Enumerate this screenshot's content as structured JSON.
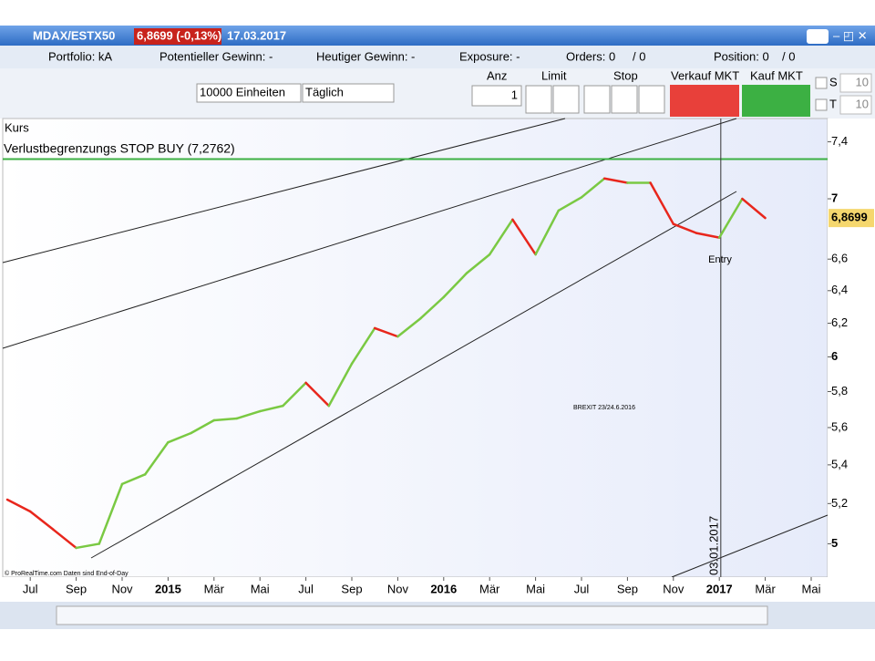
{
  "title_bar": {
    "symbol": "MDAX/ESTX50",
    "price": "6,8699 (-0,13%)",
    "date": "17.03.2017"
  },
  "info_bar": {
    "portfolio": "Portfolio: kA",
    "potential": "Potentieller Gewinn: -",
    "today": "Heutiger Gewinn: -",
    "exposure": "Exposure: -",
    "orders": "Orders: 0",
    "orders_total": "/ 0",
    "position": "Position: 0",
    "position_total": "/ 0"
  },
  "toolbar": {
    "units": "10000 Einheiten",
    "period": "Täglich",
    "qty_label": "Anz",
    "qty": "1",
    "limit": "Limit",
    "stop": "Stop",
    "sell": "Verkauf MKT",
    "buy": "Kauf MKT",
    "s_label": "S",
    "s_value": "10",
    "t_label": "T",
    "t_value": "10"
  },
  "chart_data": {
    "type": "line",
    "panel_label": "Kurs",
    "stop_text": "Verlustbegrenzungs STOP BUY (7,2762)",
    "stop_level": 7.2762,
    "stop_color": "#3cb043",
    "last_price": {
      "value": 6.8699,
      "label": "6,8699"
    },
    "marker_date": "03.01.2017",
    "annotations": [
      "Entry",
      "BREXIT 23/24.6.2016"
    ],
    "copyright": "© ProRealTime.com  Daten sind End-of-Day",
    "up_color": "#7ac943",
    "down_color": "#e8261c",
    "log_scale": true,
    "x": [
      "2014-06",
      "2014-07",
      "2014-08",
      "2014-09",
      "2014-10",
      "2014-11",
      "2014-12",
      "2015-01",
      "2015-02",
      "2015-03",
      "2015-04",
      "2015-05",
      "2015-06",
      "2015-07",
      "2015-08",
      "2015-09",
      "2015-10",
      "2015-11",
      "2015-12",
      "2016-01",
      "2016-02",
      "2016-03",
      "2016-04",
      "2016-05",
      "2016-06",
      "2016-07",
      "2016-08",
      "2016-09",
      "2016-10",
      "2016-11",
      "2016-12",
      "2017-01",
      "2017-02",
      "2017-03"
    ],
    "values": [
      5.22,
      5.16,
      5.07,
      4.98,
      5.0,
      5.3,
      5.35,
      5.52,
      5.57,
      5.64,
      5.65,
      5.69,
      5.72,
      5.85,
      5.72,
      5.96,
      6.17,
      6.12,
      6.23,
      6.36,
      6.51,
      6.63,
      6.86,
      6.63,
      6.92,
      7.01,
      7.14,
      7.11,
      7.11,
      6.83,
      6.77,
      6.74,
      7.0,
      6.87
    ],
    "xlim": [
      "2014-06",
      "2017-05"
    ],
    "xticks": [
      {
        "value": "2014-07",
        "label": "Jul"
      },
      {
        "value": "2014-09",
        "label": "Sep"
      },
      {
        "value": "2014-11",
        "label": "Nov"
      },
      {
        "value": "2015-01",
        "label": "2015"
      },
      {
        "value": "2015-03",
        "label": "Mär"
      },
      {
        "value": "2015-05",
        "label": "Mai"
      },
      {
        "value": "2015-07",
        "label": "Jul"
      },
      {
        "value": "2015-09",
        "label": "Sep"
      },
      {
        "value": "2015-11",
        "label": "Nov"
      },
      {
        "value": "2016-01",
        "label": "2016"
      },
      {
        "value": "2016-03",
        "label": "Mär"
      },
      {
        "value": "2016-05",
        "label": "Mai"
      },
      {
        "value": "2016-07",
        "label": "Jul"
      },
      {
        "value": "2016-09",
        "label": "Sep"
      },
      {
        "value": "2016-11",
        "label": "Nov"
      },
      {
        "value": "2017-01",
        "label": "2017"
      },
      {
        "value": "2017-03",
        "label": "Mär"
      },
      {
        "value": "2017-05",
        "label": "Mai"
      }
    ],
    "ylim": [
      4.84,
      7.57
    ],
    "yticks": [
      {
        "value": 7.4,
        "label": "7,4"
      },
      7,
      {
        "value": 6.6,
        "label": "6,6"
      },
      {
        "value": 6.4,
        "label": "6,4"
      },
      {
        "value": 6.2,
        "label": "6,2"
      },
      6,
      {
        "value": 5.8,
        "label": "5,8"
      },
      {
        "value": 5.6,
        "label": "5,6"
      },
      {
        "value": 5.4,
        "label": "5,4"
      },
      {
        "value": 5.2,
        "label": "5,2"
      },
      5
    ]
  }
}
